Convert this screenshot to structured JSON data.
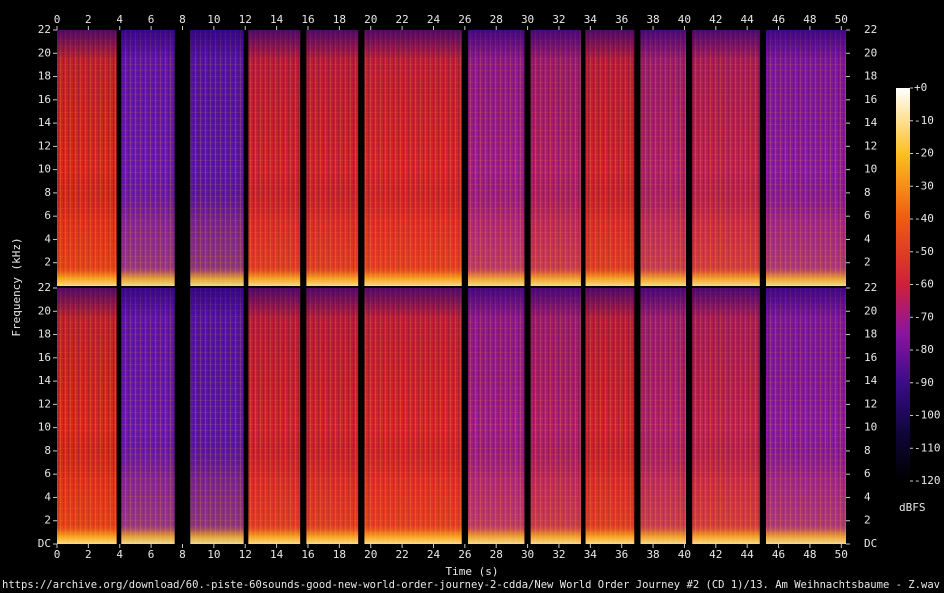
{
  "chart_data": {
    "type": "spectrogram",
    "x_label": "Time (s)",
    "y_label": "Frequency (kHz)",
    "xlim": [
      0,
      50.3
    ],
    "xticks": [
      0,
      2,
      4,
      6,
      8,
      10,
      12,
      14,
      16,
      18,
      20,
      22,
      24,
      26,
      28,
      30,
      32,
      34,
      36,
      38,
      40,
      42,
      44,
      46,
      48,
      50
    ],
    "panels": [
      {
        "ylim": [
          0,
          22
        ],
        "yticks": [
          2,
          4,
          6,
          8,
          10,
          12,
          14,
          16,
          18,
          20,
          22
        ]
      },
      {
        "ylim": [
          0,
          22
        ],
        "yticks": [
          {
            "value": 0,
            "label": "DC"
          },
          2,
          4,
          6,
          8,
          10,
          12,
          14,
          16,
          18,
          20,
          22
        ]
      }
    ],
    "segments": [
      {
        "start": 0,
        "end": 3.8,
        "color": "#d8261e"
      },
      {
        "start": 4.1,
        "end": 7.5,
        "color": "#6a18b0"
      },
      {
        "start": 8.5,
        "end": 11.9,
        "color": "#5a16a8"
      },
      {
        "start": 12.2,
        "end": 15.5,
        "color": "#d0202e"
      },
      {
        "start": 15.9,
        "end": 19.2,
        "color": "#d0202e"
      },
      {
        "start": 19.6,
        "end": 25.8,
        "color": "#d8222a"
      },
      {
        "start": 26.2,
        "end": 29.8,
        "color": "#a01c8a"
      },
      {
        "start": 30.2,
        "end": 33.4,
        "color": "#b01e6a"
      },
      {
        "start": 33.7,
        "end": 36.8,
        "color": "#d0202e"
      },
      {
        "start": 37.2,
        "end": 40.1,
        "color": "#b0206a"
      },
      {
        "start": 40.5,
        "end": 44.8,
        "color": "#c02050"
      },
      {
        "start": 45.2,
        "end": 50.3,
        "color": "#8a1aa0"
      }
    ],
    "colorbar": {
      "label": "dBFS",
      "clim": [
        -120,
        0
      ],
      "ticks": [
        {
          "value": 0,
          "label": "+0"
        },
        -10,
        -20,
        -30,
        -40,
        -50,
        -60,
        -70,
        -80,
        -90,
        -100,
        -110,
        -120
      ],
      "colormap": [
        {
          "value": -120,
          "color": "#000000"
        },
        {
          "value": -105,
          "color": "#10063a"
        },
        {
          "value": -90,
          "color": "#3a0c8a"
        },
        {
          "value": -75,
          "color": "#8a14a0"
        },
        {
          "value": -60,
          "color": "#d0203a"
        },
        {
          "value": -40,
          "color": "#f05a10"
        },
        {
          "value": -20,
          "color": "#fcc020"
        },
        {
          "value": 0,
          "color": "#ffffff"
        }
      ]
    }
  },
  "footer": "https://archive.org/download/60.-piste-60sounds-good-new-world-order-journey-2-cdda/New World Order Journey #2 (CD 1)/13. Am Weihnachtsbaume - Z.wav"
}
